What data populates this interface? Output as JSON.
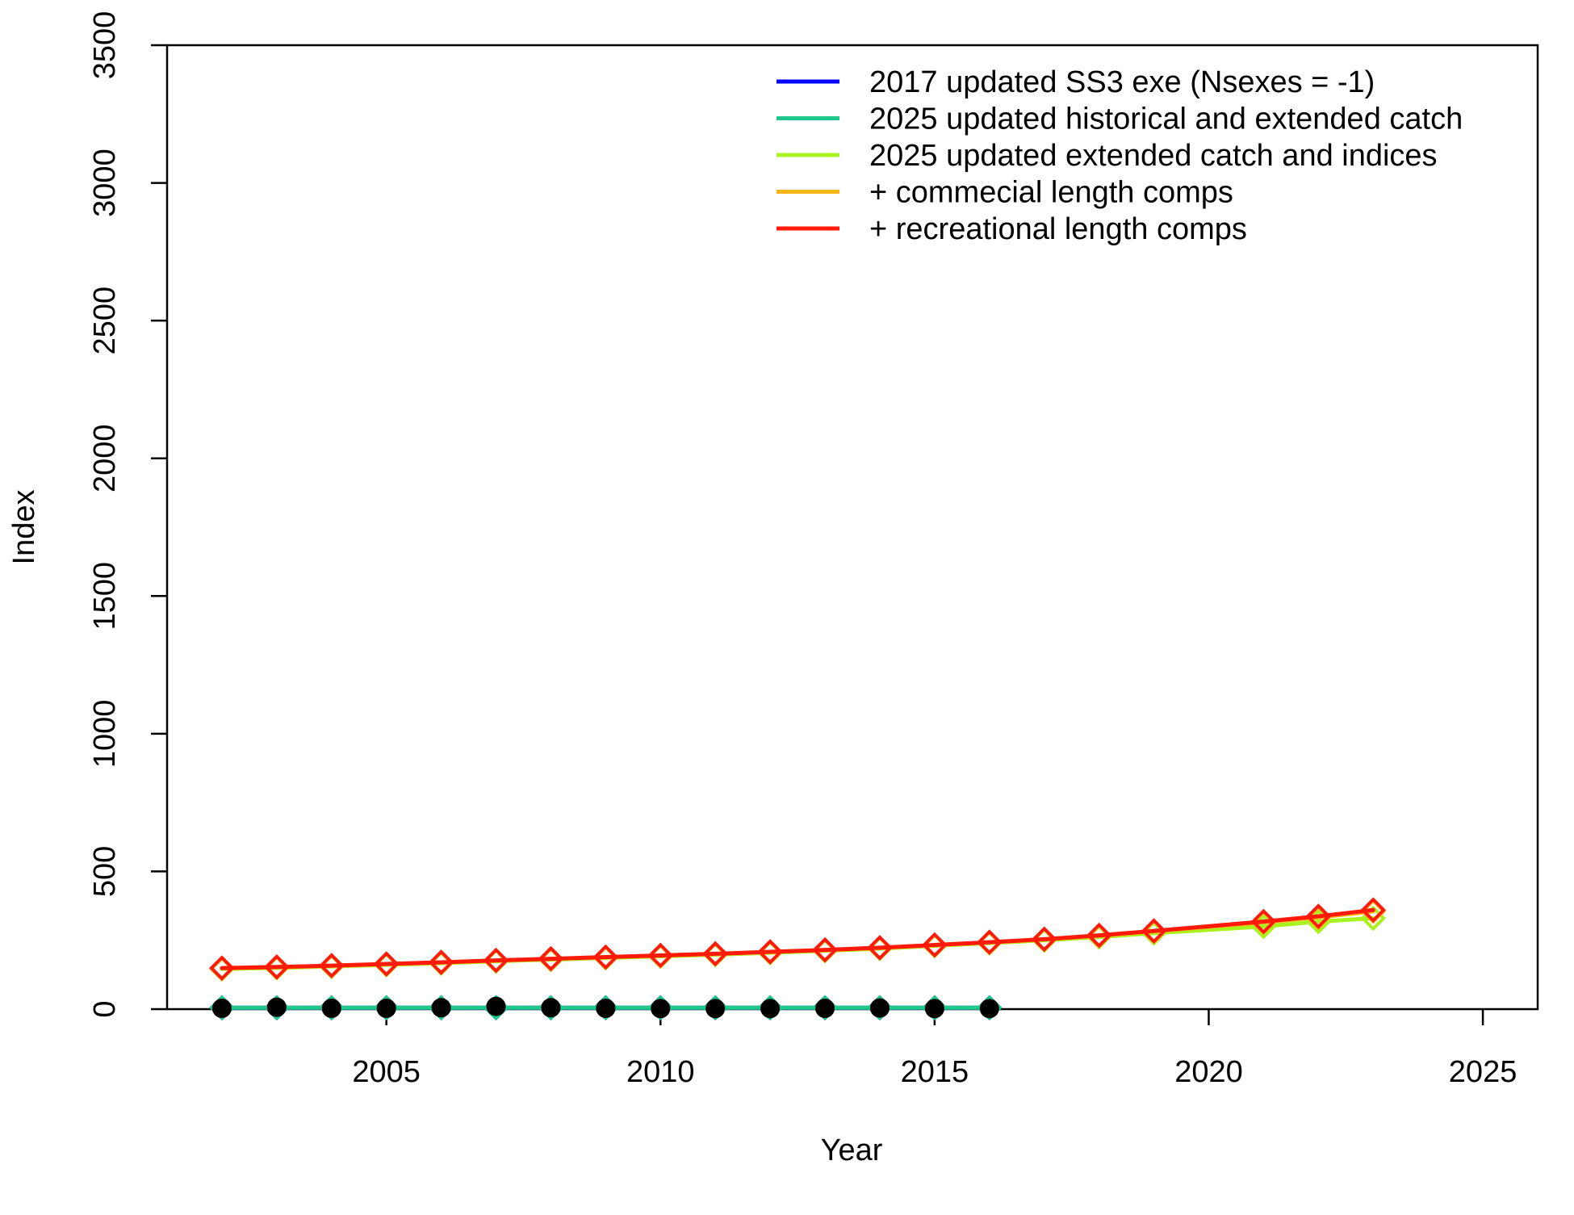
{
  "chart_data": {
    "type": "line",
    "title": "",
    "xlabel": "Year",
    "ylabel": "Index",
    "xlim": [
      2001,
      2026
    ],
    "ylim": [
      0,
      3500
    ],
    "x_ticks": [
      "2005",
      "2010",
      "2015",
      "2020",
      "2025"
    ],
    "y_ticks": [
      "0",
      "500",
      "1000",
      "1500",
      "2000",
      "2500",
      "3000",
      "3500"
    ],
    "grid": false,
    "legend_position": "top-right",
    "series": [
      {
        "name": "2017 updated SS3 exe (Nsexes = -1)",
        "color": "#0000ff",
        "x": [
          2002,
          2003,
          2004,
          2005,
          2006,
          2007,
          2008,
          2009,
          2010,
          2011,
          2012,
          2013,
          2014,
          2015,
          2016
        ],
        "y": [
          5,
          5,
          5,
          5,
          5,
          5,
          5,
          5,
          5,
          5,
          5,
          5,
          5,
          5,
          5
        ]
      },
      {
        "name": "2025 updated historical and extended catch",
        "color": "#1fc98b",
        "x": [
          2002,
          2003,
          2004,
          2005,
          2006,
          2007,
          2008,
          2009,
          2010,
          2011,
          2012,
          2013,
          2014,
          2015,
          2016
        ],
        "y": [
          5,
          5,
          5,
          5,
          5,
          5,
          5,
          5,
          5,
          5,
          5,
          5,
          5,
          5,
          5
        ]
      },
      {
        "name": "2025 updated extended catch and indices",
        "color": "#a8f21f",
        "x": [
          2002,
          2003,
          2004,
          2005,
          2006,
          2007,
          2008,
          2009,
          2010,
          2011,
          2012,
          2013,
          2014,
          2015,
          2016,
          2017,
          2018,
          2019,
          2021,
          2022,
          2023
        ],
        "y": [
          146,
          150,
          155,
          161,
          167,
          174,
          180,
          186,
          192,
          198,
          205,
          212,
          220,
          230,
          240,
          250,
          262,
          276,
          300,
          318,
          330
        ]
      },
      {
        "name": "+ commecial length comps",
        "color": "#f7b516",
        "x": [
          2002,
          2003,
          2004,
          2005,
          2006,
          2007,
          2008,
          2009,
          2010,
          2011,
          2012,
          2013,
          2014,
          2015,
          2016,
          2017,
          2018,
          2019,
          2021,
          2022,
          2023
        ],
        "y": [
          148,
          152,
          157,
          163,
          169,
          176,
          182,
          188,
          194,
          200,
          207,
          214,
          222,
          232,
          242,
          253,
          266,
          282,
          315,
          333,
          355
        ]
      },
      {
        "name": "+ recreational length comps",
        "color": "#ff1a0a",
        "x": [
          2002,
          2003,
          2004,
          2005,
          2006,
          2007,
          2008,
          2009,
          2010,
          2011,
          2012,
          2013,
          2014,
          2015,
          2016,
          2017,
          2018,
          2019,
          2021,
          2022,
          2023
        ],
        "y": [
          149,
          153,
          158,
          164,
          170,
          177,
          183,
          189,
          195,
          201,
          208,
          215,
          223,
          233,
          243,
          254,
          268,
          284,
          318,
          337,
          360
        ]
      }
    ],
    "observed": {
      "color": "#000000",
      "x": [
        2002,
        2003,
        2004,
        2005,
        2006,
        2007,
        2008,
        2009,
        2010,
        2011,
        2012,
        2013,
        2014,
        2015,
        2016
      ],
      "y": [
        3,
        7,
        3,
        3,
        5,
        10,
        5,
        3,
        2,
        2,
        2,
        3,
        4,
        2,
        2
      ]
    }
  }
}
